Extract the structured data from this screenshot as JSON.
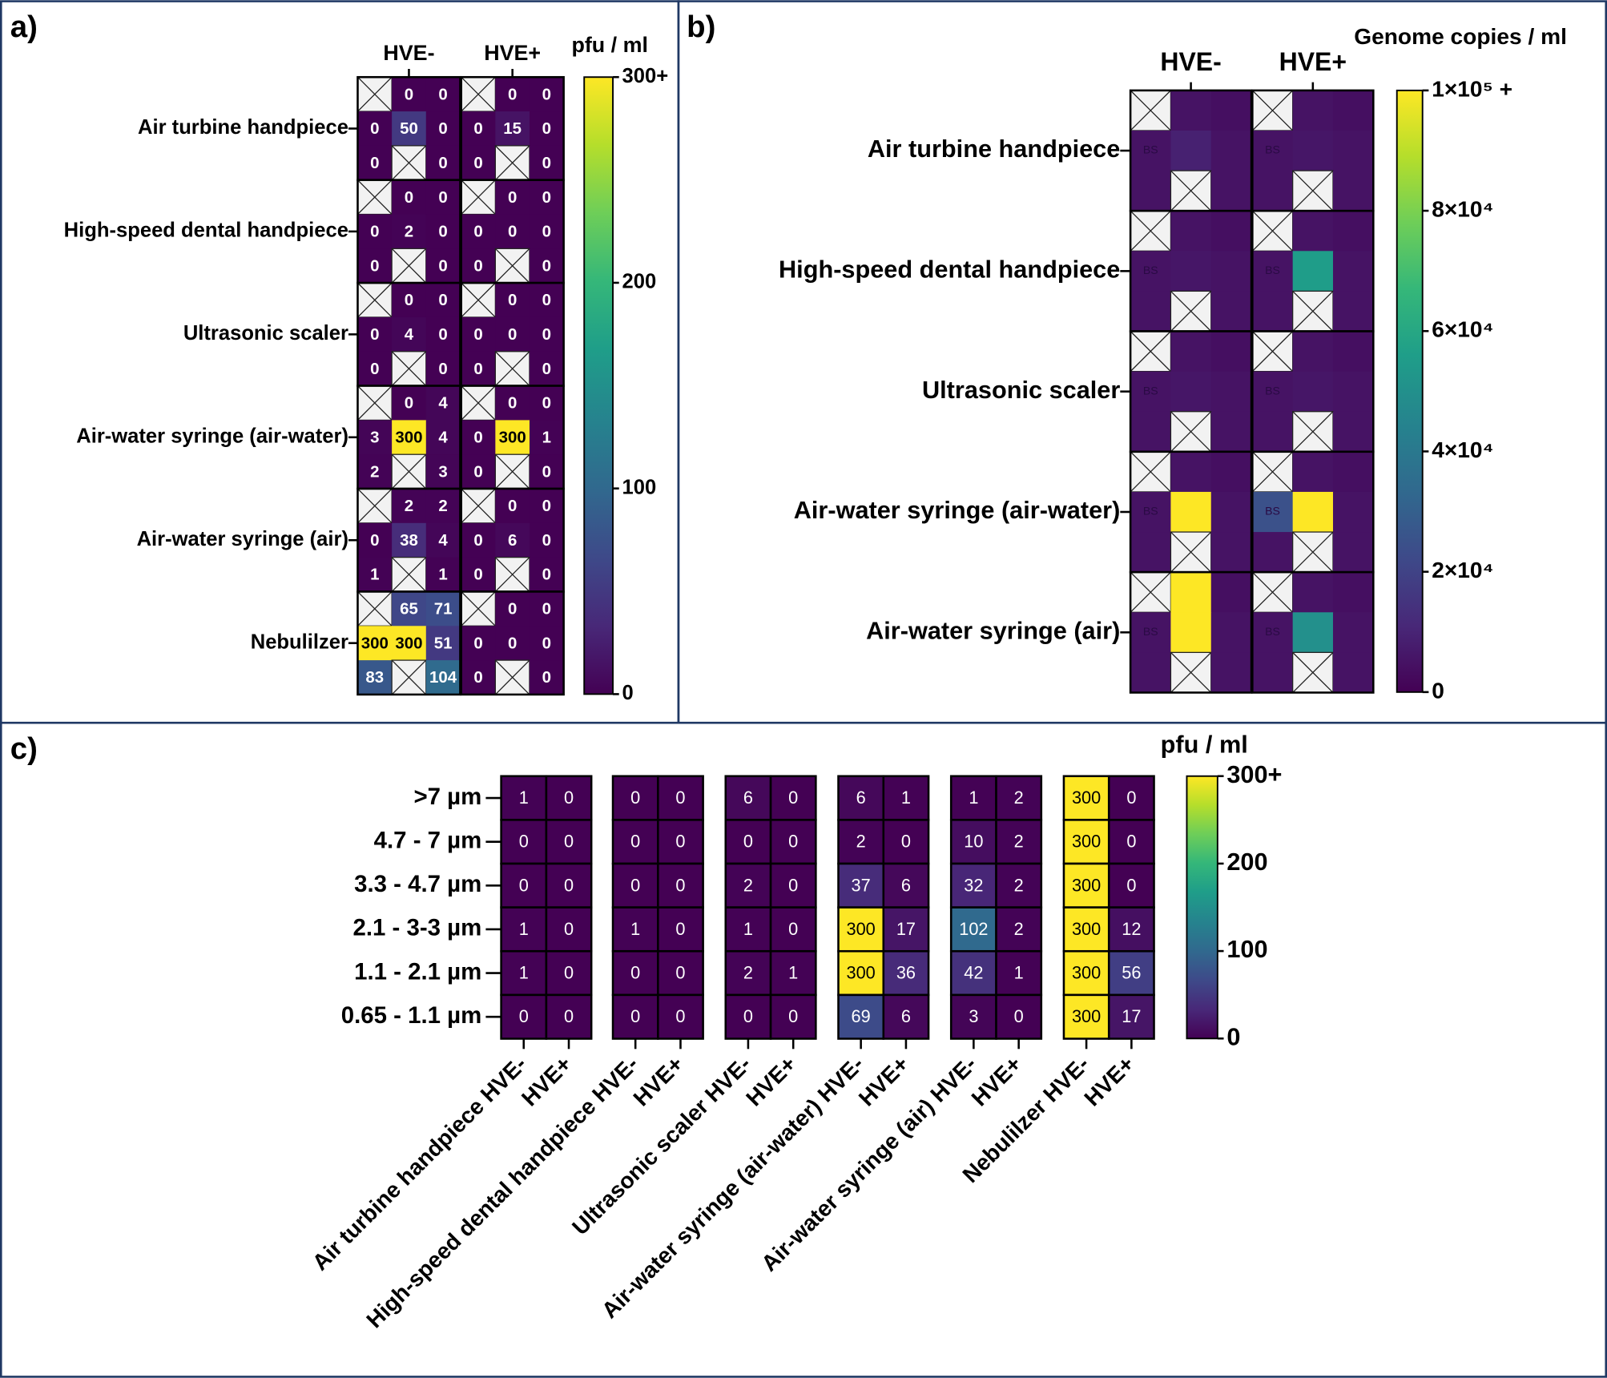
{
  "chart_data": [
    {
      "type": "grid-heatmap",
      "panel_label": "a)",
      "colorbar_label": "pfu / ml",
      "rows": [
        "Air turbine handpiece",
        "High-speed dental handpiece",
        "Ultrasonic scaler",
        "Air-water syringe (air-water)",
        "Air-water syringe (air)",
        "Nebulilzer"
      ],
      "columns": [
        "HVE-",
        "HVE+"
      ],
      "clim": [
        0,
        300
      ],
      "cticks": [
        0,
        100,
        200,
        {
          "value": 300,
          "label": "300+"
        }
      ],
      "values": [
        [
          [
            [
              null,
              0,
              0
            ],
            [
              0,
              50,
              0
            ],
            [
              0,
              null,
              0
            ]
          ],
          [
            [
              null,
              0,
              0
            ],
            [
              0,
              15,
              0
            ],
            [
              0,
              null,
              0
            ]
          ]
        ],
        [
          [
            [
              null,
              0,
              0
            ],
            [
              0,
              2,
              0
            ],
            [
              0,
              null,
              0
            ]
          ],
          [
            [
              null,
              0,
              0
            ],
            [
              0,
              0,
              0
            ],
            [
              0,
              null,
              0
            ]
          ]
        ],
        [
          [
            [
              null,
              0,
              0
            ],
            [
              0,
              4,
              0
            ],
            [
              0,
              null,
              0
            ]
          ],
          [
            [
              null,
              0,
              0
            ],
            [
              0,
              0,
              0
            ],
            [
              0,
              null,
              0
            ]
          ]
        ],
        [
          [
            [
              null,
              0,
              4
            ],
            [
              3,
              300,
              4
            ],
            [
              2,
              null,
              3
            ]
          ],
          [
            [
              null,
              0,
              0
            ],
            [
              0,
              300,
              1
            ],
            [
              0,
              null,
              0
            ]
          ]
        ],
        [
          [
            [
              null,
              2,
              2
            ],
            [
              0,
              38,
              4
            ],
            [
              1,
              null,
              1
            ]
          ],
          [
            [
              null,
              0,
              0
            ],
            [
              0,
              6,
              0
            ],
            [
              0,
              null,
              0
            ]
          ]
        ],
        [
          [
            [
              null,
              65,
              71
            ],
            [
              300,
              300,
              51
            ],
            [
              83,
              null,
              104
            ]
          ],
          [
            [
              null,
              0,
              0
            ],
            [
              0,
              0,
              0
            ],
            [
              0,
              null,
              0
            ]
          ]
        ]
      ]
    },
    {
      "type": "grid-heatmap",
      "panel_label": "b)",
      "colorbar_label": "Genome copies / ml",
      "cell_text": "BS",
      "rows": [
        "Air turbine handpiece",
        "High-speed dental handpiece",
        "Ultrasonic scaler",
        "Air-water syringe (air-water)",
        "Air-water syringe (air)"
      ],
      "columns": [
        "HVE-",
        "HVE+"
      ],
      "clim": [
        0,
        100000
      ],
      "cticks": [
        0,
        {
          "value": 20000,
          "label": "2×10⁴"
        },
        {
          "value": 40000,
          "label": "4×10⁴"
        },
        {
          "value": 60000,
          "label": "6×10⁴"
        },
        {
          "value": 80000,
          "label": "8×10⁴"
        },
        {
          "value": 100000,
          "label": "1×10⁵ +"
        }
      ],
      "values": [
        [
          [
            [
              null,
              5000,
              4000
            ],
            [
              5000,
              9000,
              5000
            ],
            [
              5000,
              null,
              5000
            ]
          ],
          [
            [
              null,
              5000,
              4000
            ],
            [
              5000,
              6000,
              5000
            ],
            [
              5000,
              null,
              5000
            ]
          ]
        ],
        [
          [
            [
              null,
              5000,
              4000
            ],
            [
              5000,
              6000,
              5000
            ],
            [
              5000,
              null,
              5000
            ]
          ],
          [
            [
              null,
              5000,
              4000
            ],
            [
              5000,
              55000,
              5000
            ],
            [
              5000,
              null,
              5000
            ]
          ]
        ],
        [
          [
            [
              null,
              5000,
              4000
            ],
            [
              5000,
              6000,
              5000
            ],
            [
              5000,
              null,
              5000
            ]
          ],
          [
            [
              null,
              5000,
              4000
            ],
            [
              5000,
              6000,
              5000
            ],
            [
              5000,
              null,
              5000
            ]
          ]
        ],
        [
          [
            [
              null,
              5000,
              4000
            ],
            [
              5000,
              100000,
              5000
            ],
            [
              5000,
              null,
              5000
            ]
          ],
          [
            [
              null,
              5000,
              4000
            ],
            [
              25000,
              100000,
              5000
            ],
            [
              5000,
              null,
              5000
            ]
          ]
        ],
        [
          [
            [
              null,
              100000,
              4000
            ],
            [
              5000,
              100000,
              5000
            ],
            [
              5000,
              null,
              5000
            ]
          ],
          [
            [
              null,
              5000,
              4000
            ],
            [
              5000,
              50000,
              5000
            ],
            [
              5000,
              null,
              5000
            ]
          ]
        ]
      ]
    },
    {
      "type": "heatmap",
      "panel_label": "c)",
      "colorbar_label": "pfu / ml",
      "rows": [
        ">7 µm",
        "4.7 - 7 µm",
        "3.3 - 4.7 µm",
        "2.1 - 3-3 µm",
        "1.1 - 2.1 µm",
        "0.65 - 1.1 µm"
      ],
      "categories": [
        "Air turbine handpiece HVE-",
        "HVE+",
        "High-speed dental handpiece HVE-",
        "HVE+",
        "Ultrasonic scaler HVE-",
        "HVE+",
        "Air-water syringe (air-water) HVE-",
        "HVE+",
        "Air-water syringe (air) HVE-",
        "HVE+",
        "Nebulilzer HVE-",
        "HVE+"
      ],
      "clim": [
        0,
        300
      ],
      "cticks": [
        0,
        100,
        200,
        {
          "value": 300,
          "label": "300+"
        }
      ],
      "values": [
        [
          1,
          0,
          0,
          0,
          6,
          0,
          6,
          1,
          1,
          2,
          300,
          0
        ],
        [
          0,
          0,
          0,
          0,
          0,
          0,
          2,
          0,
          10,
          2,
          300,
          0
        ],
        [
          0,
          0,
          0,
          0,
          2,
          0,
          37,
          6,
          32,
          2,
          300,
          0
        ],
        [
          1,
          0,
          1,
          0,
          1,
          0,
          300,
          17,
          102,
          2,
          300,
          12
        ],
        [
          1,
          0,
          0,
          0,
          2,
          1,
          300,
          36,
          42,
          1,
          300,
          56
        ],
        [
          0,
          0,
          0,
          0,
          0,
          0,
          69,
          6,
          3,
          0,
          300,
          17
        ]
      ]
    }
  ]
}
